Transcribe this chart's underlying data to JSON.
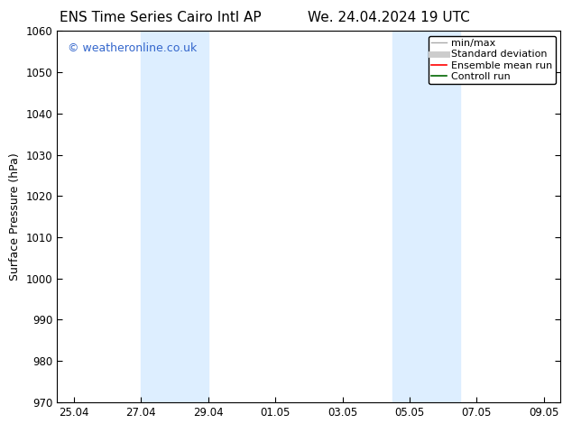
{
  "title_left": "ENS Time Series Cairo Intl AP",
  "title_right": "We. 24.04.2024 19 UTC",
  "ylabel": "Surface Pressure (hPa)",
  "ylim": [
    970,
    1060
  ],
  "yticks": [
    970,
    980,
    990,
    1000,
    1010,
    1020,
    1030,
    1040,
    1050,
    1060
  ],
  "xtick_labels": [
    "25.04",
    "27.04",
    "29.04",
    "01.05",
    "03.05",
    "05.05",
    "07.05",
    "09.05"
  ],
  "xtick_positions": [
    0,
    2,
    4,
    6,
    8,
    10,
    12,
    14
  ],
  "xlim": [
    -0.5,
    14.5
  ],
  "shaded_bands": [
    {
      "x_start": 2,
      "x_end": 4
    },
    {
      "x_start": 9.5,
      "x_end": 11.5
    }
  ],
  "shaded_color": "#ddeeff",
  "watermark_text": "© weatheronline.co.uk",
  "watermark_color": "#3366cc",
  "legend_entries": [
    {
      "label": "min/max",
      "color": "#aaaaaa",
      "lw": 1.0,
      "style": "-"
    },
    {
      "label": "Standard deviation",
      "color": "#cccccc",
      "lw": 5,
      "style": "-"
    },
    {
      "label": "Ensemble mean run",
      "color": "#ff0000",
      "lw": 1.2,
      "style": "-"
    },
    {
      "label": "Controll run",
      "color": "#006600",
      "lw": 1.2,
      "style": "-"
    }
  ],
  "bg_color": "#ffffff",
  "title_fontsize": 11,
  "ylabel_fontsize": 9,
  "tick_fontsize": 8.5,
  "legend_fontsize": 8,
  "watermark_fontsize": 9
}
